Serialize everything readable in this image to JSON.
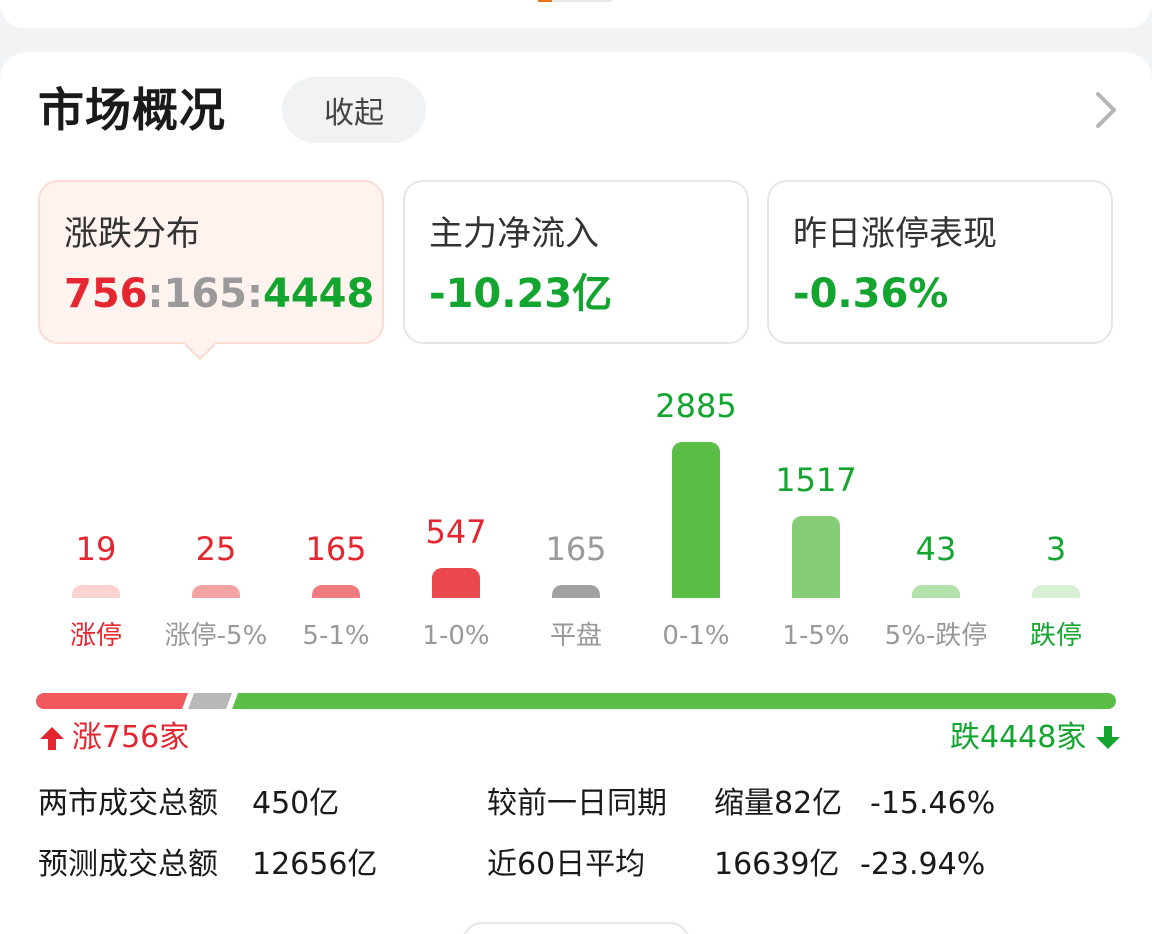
{
  "header": {
    "title": "市场概况",
    "collapse_label": "收起",
    "more_icon": "chevron-right-icon"
  },
  "stats": {
    "distribution": {
      "label": "涨跌分布",
      "up": "756",
      "flat": "165",
      "down": "4448",
      "sep": ":"
    },
    "main_flow": {
      "label": "主力净流入",
      "value": "-10.23亿"
    },
    "limit_up_perf": {
      "label": "昨日涨停表现",
      "value": "-0.36%"
    }
  },
  "chart_data": {
    "type": "bar",
    "categories": [
      "涨停",
      "涨停-5%",
      "5-1%",
      "1-0%",
      "平盘",
      "0-1%",
      "1-5%",
      "5%-跌停",
      "跌停"
    ],
    "values": [
      19,
      25,
      165,
      547,
      165,
      2885,
      1517,
      43,
      3
    ],
    "value_labels": [
      "19",
      "25",
      "165",
      "547",
      "165",
      "2885",
      "1517",
      "43",
      "3"
    ],
    "bar_colors": [
      "#fcd2d2",
      "#f4a3a3",
      "#f07c7f",
      "#e9484e",
      "#a1a1a1",
      "#5bbf47",
      "#86cd77",
      "#b3e1aa",
      "#d8f0d3"
    ],
    "value_colors": [
      "#e3262f",
      "#e3262f",
      "#e3262f",
      "#e3262f",
      "#9a9a9a",
      "#13a52f",
      "#13a52f",
      "#13a52f",
      "#13a52f"
    ],
    "label_colors": [
      "#e3262f",
      "#999999",
      "#999999",
      "#999999",
      "#999999",
      "#999999",
      "#999999",
      "#999999",
      "#13a52f"
    ]
  },
  "ratio": {
    "up": 756,
    "flat": 165,
    "down": 4448,
    "up_color": "#f05a5f",
    "flat_color": "#b8b8b8",
    "down_color": "#5bbf47"
  },
  "counts": {
    "up_text": "涨756家",
    "up_icon": "arrow-up-icon",
    "down_text": "跌4448家",
    "down_icon": "arrow-down-icon"
  },
  "summary": {
    "turnover_label": "两市成交总额",
    "turnover_value": "450亿",
    "forecast_label": "预测成交总额",
    "forecast_value": "12656亿",
    "prev_day_label": "较前一日同期",
    "prev_day_change": "缩量82亿",
    "prev_day_pct": "-15.46%",
    "avg60_label": "近60日平均",
    "avg60_value": "16639亿",
    "avg60_pct": "-23.94%"
  }
}
